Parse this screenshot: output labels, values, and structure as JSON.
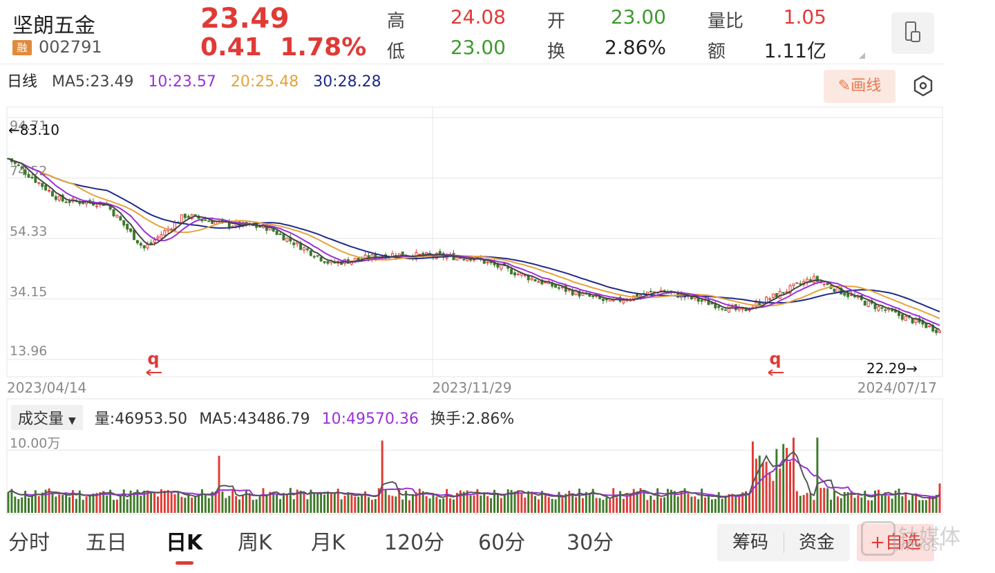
{
  "header": {
    "name": "坚朗五金",
    "badge": "融",
    "code": "002791",
    "price": "23.49",
    "change_abs": "0.41",
    "change_pct": "1.78%",
    "stats": [
      {
        "label": "高",
        "value": "24.08",
        "color": "#e03a36"
      },
      {
        "label": "低",
        "value": "23.00",
        "color": "#3d9a2e"
      },
      {
        "label": "开",
        "value": "23.00",
        "color": "#3d9a2e"
      },
      {
        "label": "换",
        "value": "2.86%",
        "color": "#222222"
      },
      {
        "label": "量比",
        "value": "1.05",
        "color": "#e03a36"
      },
      {
        "label": "额",
        "value": "1.11亿",
        "color": "#222222"
      }
    ]
  },
  "ma_bar": {
    "period": "日线",
    "ma5": "MA5:23.49",
    "ma10": "10:23.57",
    "ma20": "20:25.48",
    "ma30": "30:28.28",
    "draw_label": "✎画线"
  },
  "colors": {
    "up": "#e03a36",
    "down": "#3d7a2a",
    "ma5": "#444444",
    "ma10": "#9b30d9",
    "ma20": "#e6a23c",
    "ma30": "#1f2a8a",
    "grid": "#e6e6e6"
  },
  "chart_data": [
    {
      "type": "candlestick",
      "title": "日线",
      "y_ticks": [
        "94.71",
        "74.52",
        "54.33",
        "34.15",
        "13.96"
      ],
      "ylim": [
        13.96,
        94.71
      ],
      "x_labels": [
        "2023/04/14",
        "2023/11/29",
        "2024/07/17"
      ],
      "high_marker": "←83.10",
      "low_marker": "22.29→",
      "event_markers": [
        "q",
        "q"
      ],
      "series": [
        {
          "name": "MA5",
          "values": [
            23.49
          ]
        },
        {
          "name": "MA10",
          "values": [
            23.57
          ]
        },
        {
          "name": "MA20",
          "values": [
            25.48
          ]
        },
        {
          "name": "MA30",
          "values": [
            28.28
          ]
        }
      ],
      "close_trend": [
        {
          "x": "2023/04/14",
          "y": 81
        },
        {
          "x": "2023/05/10",
          "y": 67
        },
        {
          "x": "2023/06/01",
          "y": 66
        },
        {
          "x": "2023/06/20",
          "y": 51
        },
        {
          "x": "2023/07/10",
          "y": 62
        },
        {
          "x": "2023/08/01",
          "y": 59
        },
        {
          "x": "2023/08/20",
          "y": 58
        },
        {
          "x": "2023/09/20",
          "y": 46
        },
        {
          "x": "2023/10/20",
          "y": 49
        },
        {
          "x": "2023/11/29",
          "y": 48
        },
        {
          "x": "2024/01/10",
          "y": 38
        },
        {
          "x": "2024/02/05",
          "y": 33
        },
        {
          "x": "2024/03/01",
          "y": 37
        },
        {
          "x": "2024/04/10",
          "y": 30
        },
        {
          "x": "2024/05/15",
          "y": 41
        },
        {
          "x": "2024/06/10",
          "y": 33
        },
        {
          "x": "2024/07/17",
          "y": 23.49
        }
      ]
    },
    {
      "type": "bar",
      "title": "成交量",
      "y_ticks": [
        "10.00万"
      ],
      "volume": "量:46953.50",
      "ma5": "MA5:43486.79",
      "ma10": "10:49570.36",
      "turnover": "换手:2.86%"
    }
  ],
  "volume_bar": {
    "selector": "成交量",
    "volume": "量:46953.50",
    "ma5": "MA5:43486.79",
    "ma10": "10:49570.36",
    "turnover": "换手:2.86%",
    "tick": "10.00万"
  },
  "tabs": [
    "分时",
    "五日",
    "日K",
    "周K",
    "月K",
    "120分",
    "60分",
    "30分"
  ],
  "buttons": {
    "chips": "筹码",
    "funds": "资金",
    "favorite": "+自选"
  },
  "watermark": {
    "text": "钛媒体",
    "sub": "TMTPOST"
  }
}
